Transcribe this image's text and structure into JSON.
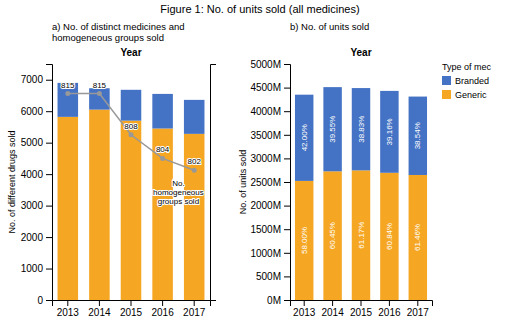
{
  "title": "Figure 1: No. of units sold (all medicines)",
  "chart_data": [
    {
      "type": "bar",
      "title": "a) No. of distinct medicines and\nhomogeneous groups sold",
      "xlabel": "Year",
      "ylabel": "No. of different drugs sold",
      "categories": [
        "2013",
        "2014",
        "2015",
        "2016",
        "2017"
      ],
      "stacked": true,
      "series": [
        {
          "name": "Generic",
          "color": "#F5A623",
          "values": [
            5820,
            6050,
            5700,
            5450,
            5280
          ]
        },
        {
          "name": "Branded",
          "color": "#4472C4",
          "values": [
            1080,
            680,
            980,
            1100,
            1080
          ]
        },
        {
          "type": "line",
          "axis": "y2",
          "color": "#999999",
          "marker": "circle",
          "data_labels": true,
          "values": [
            815,
            815,
            808,
            804,
            802
          ]
        }
      ],
      "ylim": [
        0,
        7500
      ],
      "yticks": [
        0,
        1000,
        2000,
        3000,
        4000,
        5000,
        6000,
        7000
      ],
      "y2lim": [
        780,
        820
      ],
      "y2ticks": [],
      "annotations": [
        "No.\nhomogeneous\ngroups sold"
      ],
      "grid": false
    },
    {
      "type": "bar",
      "title": "b) No. of units sold",
      "xlabel": "Year",
      "ylabel": "No. of units sold",
      "categories": [
        "2013",
        "2014",
        "2015",
        "2016",
        "2017"
      ],
      "stacked": true,
      "series": [
        {
          "name": "Generic",
          "color": "#F5A623",
          "values": [
            2523,
            2726.295,
            2746.533,
            2695.212,
            2648.926
          ],
          "percent_labels": [
            "58.00%",
            "60.45%",
            "61.17%",
            "60.84%",
            "61.46%"
          ]
        },
        {
          "name": "Branded",
          "color": "#4472C4",
          "values": [
            1827,
            1783.705,
            1743.467,
            1734.788,
            1661.074
          ],
          "percent_labels": [
            "42.00%",
            "39.55%",
            "38.83%",
            "39.16%",
            "38.54%"
          ]
        }
      ],
      "ylim": [
        0,
        5000
      ],
      "yticks": [
        {
          "value": 0,
          "label": "0M"
        },
        {
          "value": 500,
          "label": "500M"
        },
        {
          "value": 1000,
          "label": "1000M"
        },
        {
          "value": 1500,
          "label": "1500M"
        },
        {
          "value": 2000,
          "label": "2000M"
        },
        {
          "value": 2500,
          "label": "2500M"
        },
        {
          "value": 3000,
          "label": "3000M"
        },
        {
          "value": 3500,
          "label": "3500M"
        },
        {
          "value": 4000,
          "label": "4000M"
        },
        {
          "value": 4500,
          "label": "4500M"
        },
        {
          "value": 5000,
          "label": "5000M"
        }
      ],
      "legend": "upper right",
      "legend_title": "Type of mec",
      "grid": false
    }
  ]
}
